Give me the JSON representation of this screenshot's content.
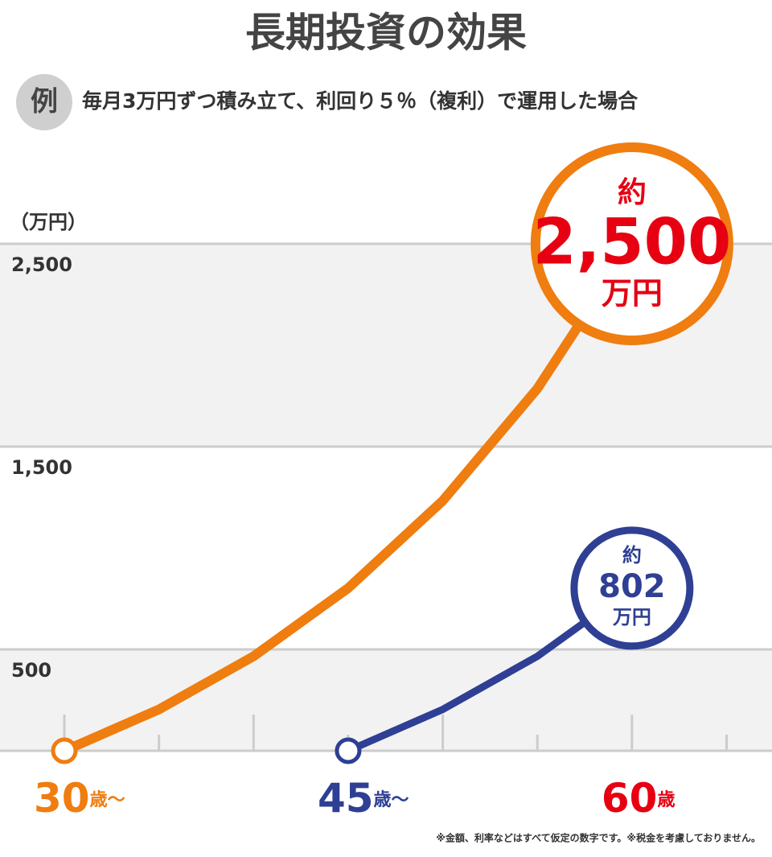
{
  "chart_data": {
    "type": "line",
    "title": "長期投資の効果",
    "badge": "例",
    "subtitle": "毎月3万円ずつ積み立て、利回り５％（複利）で運用した場合",
    "y_unit": "（万円）",
    "footnote": "※金額、利率などはすべて仮定の数字です。※税金を考慮しておりません。",
    "x": [
      30,
      35,
      40,
      45,
      50,
      55,
      60
    ],
    "xlim": [
      26.6,
      67.4
    ],
    "xticks": [
      30,
      45,
      60
    ],
    "xtick_suffixes": [
      "歳～",
      "歳～",
      "歳"
    ],
    "xtick_colors": [
      "#ef7d0f",
      "#2e3f94",
      "#e60012"
    ],
    "x_minor_ticks": [
      30,
      35,
      40,
      45,
      50,
      55,
      60,
      65
    ],
    "ylim": [
      0,
      2500
    ],
    "yticks": [
      {
        "value": 2500,
        "label": "2,500"
      },
      {
        "value": 1500,
        "label": "1,500"
      },
      500
    ],
    "grid": true,
    "label_prefix": "約",
    "label_suffix": "万円",
    "series": [
      {
        "name": "30歳から",
        "color": "#ef7d0f",
        "label_color": "#e60012",
        "values": [
          0,
          204,
          466,
          802,
          1233,
          1786,
          2500
        ],
        "value_labels": [
          null,
          null,
          null,
          null,
          null,
          null,
          "2,500"
        ]
      },
      {
        "name": "45歳から",
        "color": "#2e3f94",
        "label_color": "#2e3f94",
        "values": [
          null,
          null,
          null,
          0,
          204,
          466,
          802
        ]
      }
    ]
  }
}
